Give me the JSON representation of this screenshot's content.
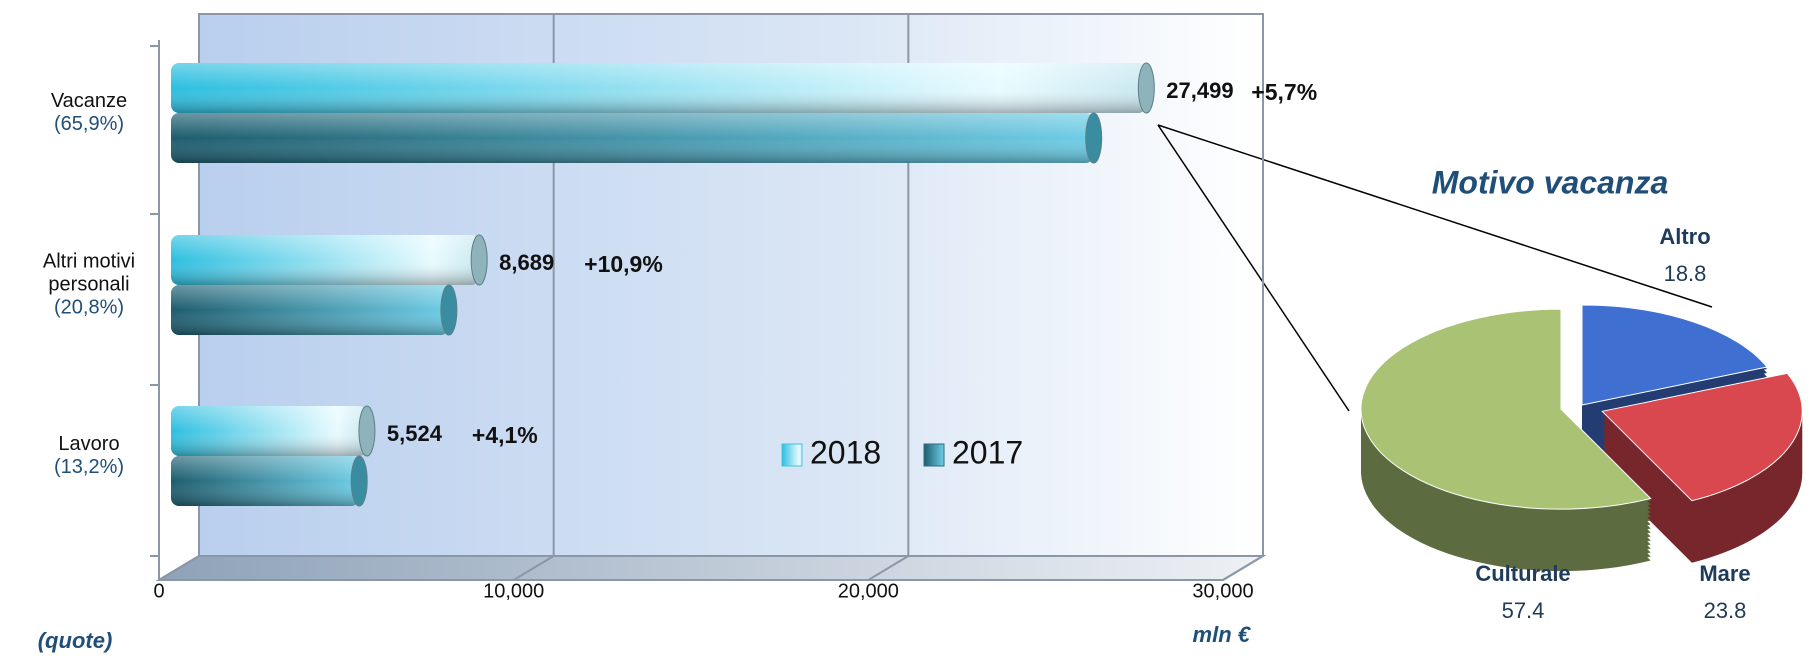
{
  "chart_data": [
    {
      "type": "bar",
      "orientation": "horizontal",
      "categories": [
        "Vacanze",
        "Altri motivi personali",
        "Lavoro"
      ],
      "category_shares": [
        "(65,9%)",
        "(20,8%)",
        "(13,2%)"
      ],
      "series": [
        {
          "name": "2018",
          "color": "#3ec6e0",
          "values": [
            27499,
            8689,
            5524
          ],
          "value_labels": [
            "27,499",
            "8,689",
            "5,524"
          ],
          "growth_labels": [
            "+5,7%",
            "+10,9%",
            "+4,1%"
          ]
        },
        {
          "name": "2017",
          "color": "#2a6f80",
          "values": [
            26016,
            7835,
            5306
          ]
        }
      ],
      "xlim": [
        0,
        30000
      ],
      "xticks": [
        0,
        {
          "value": 10000,
          "label": "10,000"
        },
        {
          "value": 20000,
          "label": "20,000"
        },
        {
          "value": 30000,
          "label": "30,000"
        }
      ],
      "xlabel": "mln €",
      "note": "(quote)",
      "grid": true
    },
    {
      "type": "pie",
      "title": "Motivo vacanza",
      "categories": [
        "Altro",
        "Mare",
        "Culturale"
      ],
      "values": [
        18.8,
        23.8,
        57.4
      ],
      "colors": [
        "#3f6fd0",
        "#d9474f",
        "#a9c274"
      ],
      "exploded": [
        false,
        true,
        true
      ]
    }
  ]
}
